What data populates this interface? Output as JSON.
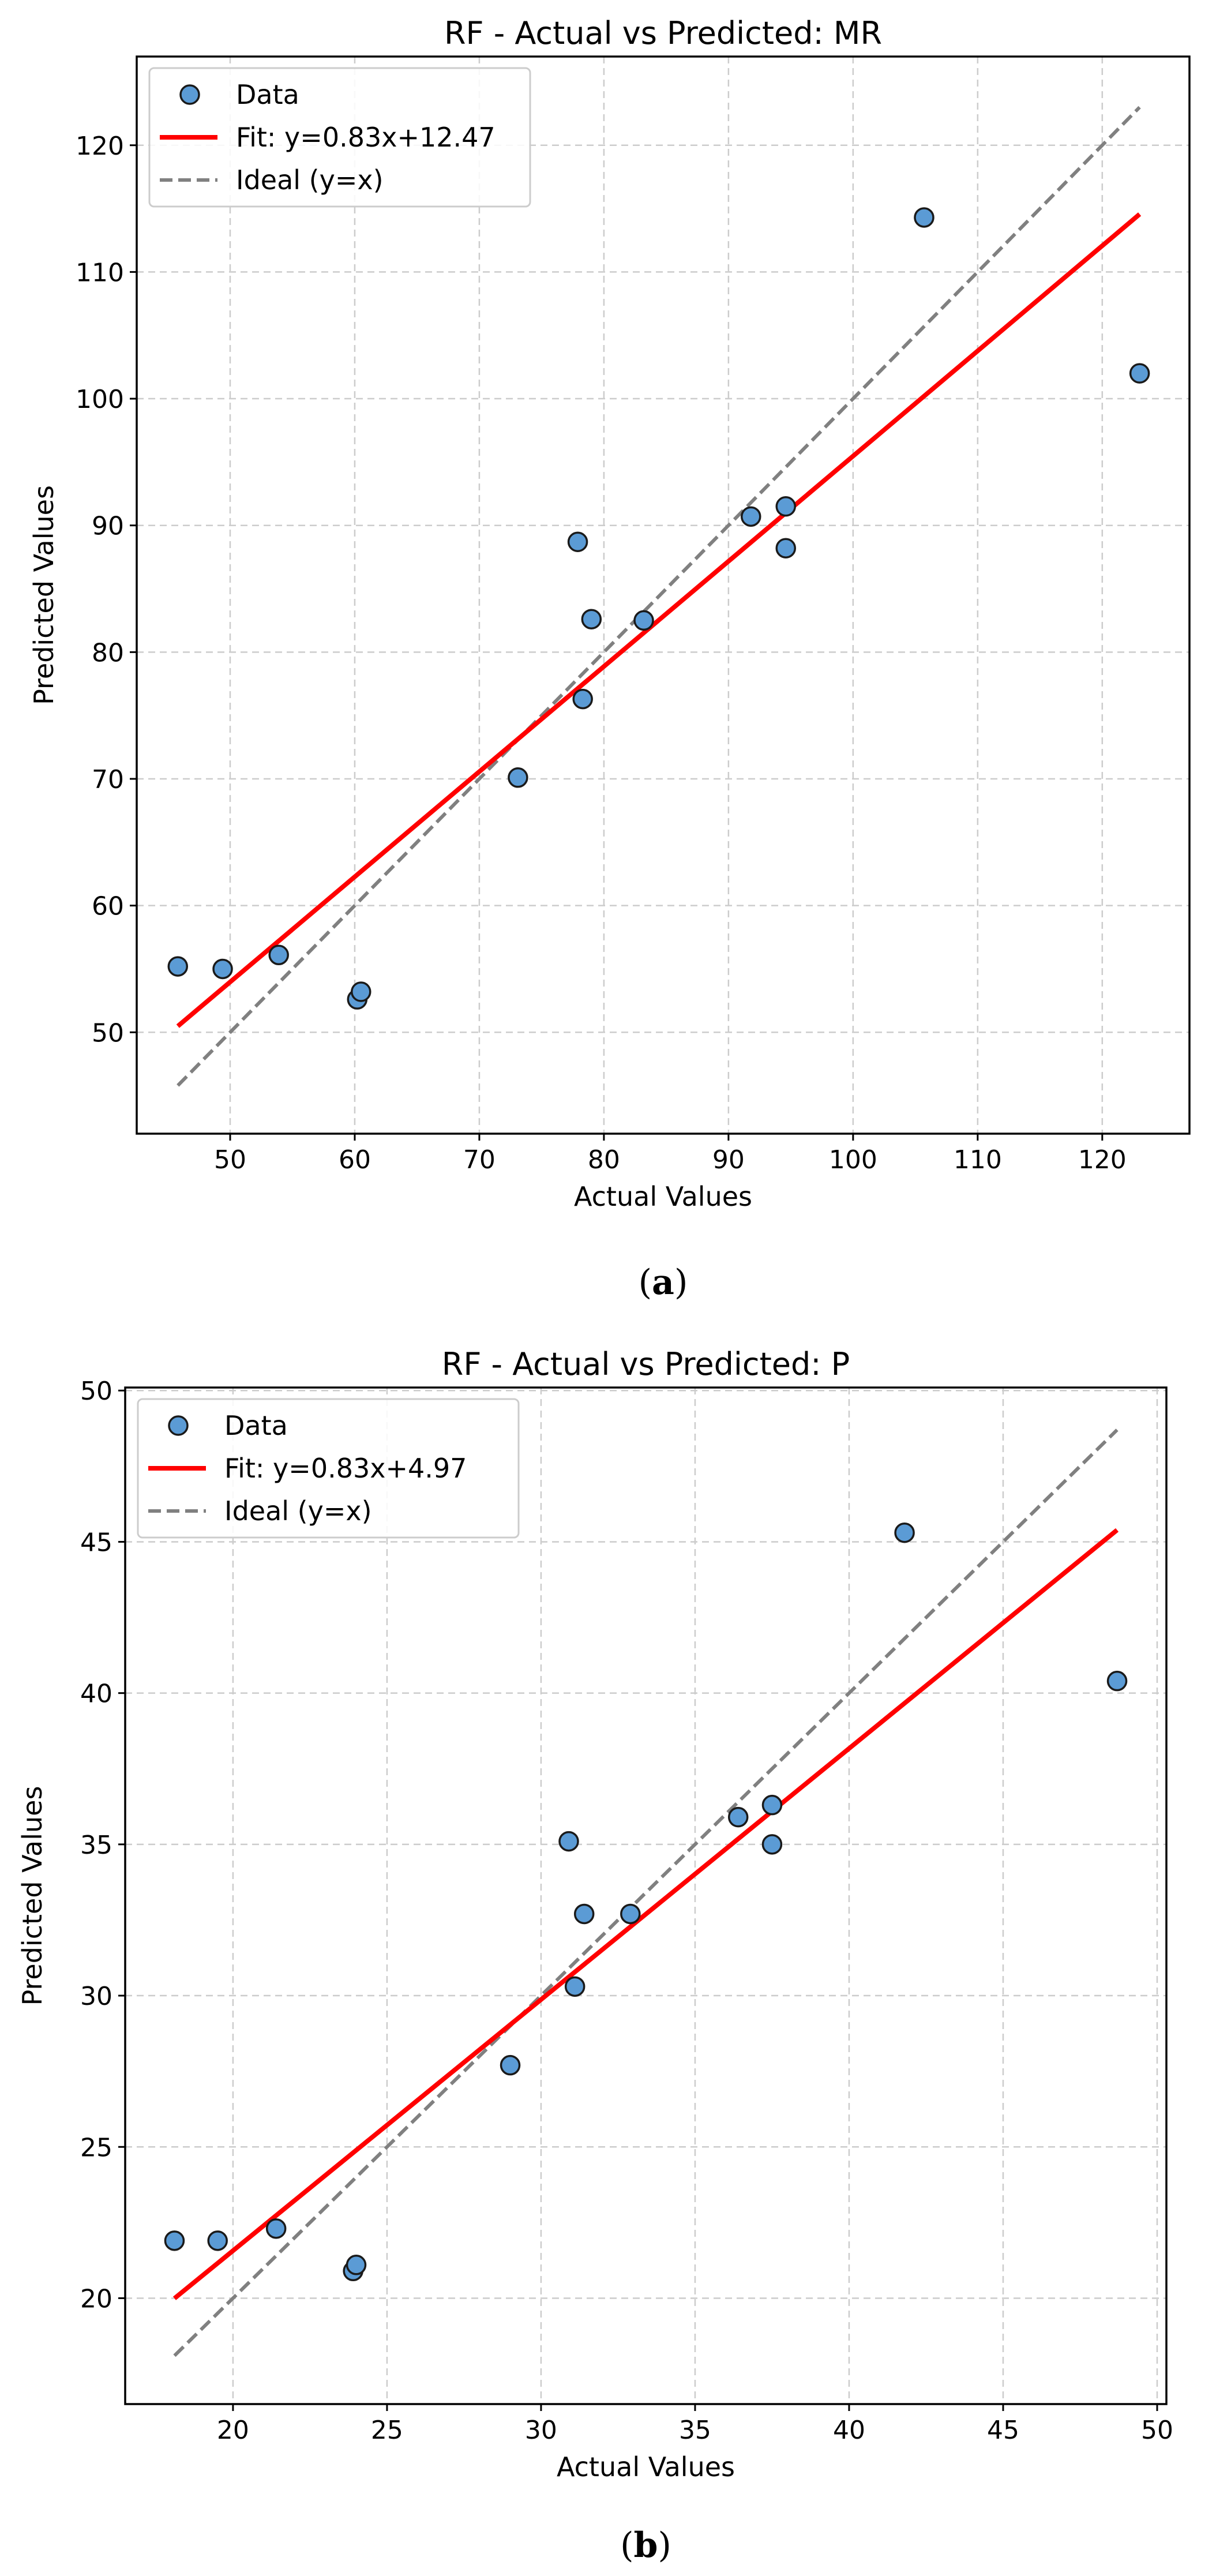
{
  "chart_data": [
    {
      "type": "scatter",
      "title": "RF - Actual vs Predicted: MR",
      "xlabel": "Actual Values",
      "ylabel": "Predicted Values",
      "caption_letter": "a",
      "xlim": [
        42.5,
        127
      ],
      "ylim": [
        42,
        127
      ],
      "xticks": [
        50,
        60,
        70,
        80,
        90,
        100,
        110,
        120
      ],
      "yticks": [
        50,
        60,
        70,
        80,
        90,
        100,
        110,
        120
      ],
      "grid": true,
      "legend_position": "top-left",
      "legend": [
        "Data",
        "Fit: y=0.83x+12.47",
        "Ideal (y=x)"
      ],
      "colors": {
        "points": "#5b9bd5",
        "fit": "#ff0000",
        "ideal": "#808080"
      },
      "fit": {
        "slope": 0.83,
        "intercept": 12.47,
        "x_range": [
          45.8,
          123.0
        ]
      },
      "ideal": {
        "x_range": [
          45.8,
          123.0
        ]
      },
      "points": [
        {
          "x": 45.8,
          "y": 55.2
        },
        {
          "x": 49.4,
          "y": 55.0
        },
        {
          "x": 53.9,
          "y": 56.1
        },
        {
          "x": 60.2,
          "y": 52.6
        },
        {
          "x": 60.5,
          "y": 53.2
        },
        {
          "x": 73.1,
          "y": 70.1
        },
        {
          "x": 77.9,
          "y": 88.7
        },
        {
          "x": 78.3,
          "y": 76.3
        },
        {
          "x": 79.0,
          "y": 82.6
        },
        {
          "x": 83.2,
          "y": 82.5
        },
        {
          "x": 91.8,
          "y": 90.7
        },
        {
          "x": 94.6,
          "y": 91.5
        },
        {
          "x": 94.6,
          "y": 88.2
        },
        {
          "x": 105.7,
          "y": 114.3
        },
        {
          "x": 123.0,
          "y": 102.0
        }
      ]
    },
    {
      "type": "scatter",
      "title": "RF - Actual vs Predicted: P",
      "xlabel": "Actual Values",
      "ylabel": "Predicted Values",
      "caption_letter": "b",
      "xlim": [
        16.5,
        50.3
      ],
      "ylim": [
        16.5,
        50.1
      ],
      "xticks": [
        20,
        25,
        30,
        35,
        40,
        45,
        50
      ],
      "yticks": [
        20,
        25,
        30,
        35,
        40,
        45,
        50
      ],
      "grid": true,
      "legend_position": "top-left",
      "legend": [
        "Data",
        "Fit: y=0.83x+4.97",
        "Ideal (y=x)"
      ],
      "colors": {
        "points": "#5b9bd5",
        "fit": "#ff0000",
        "ideal": "#808080"
      },
      "fit": {
        "slope": 0.83,
        "intercept": 4.97,
        "x_range": [
          18.1,
          48.7
        ]
      },
      "ideal": {
        "x_range": [
          18.1,
          48.7
        ]
      },
      "points": [
        {
          "x": 18.1,
          "y": 21.9
        },
        {
          "x": 19.5,
          "y": 21.9
        },
        {
          "x": 21.4,
          "y": 22.3
        },
        {
          "x": 23.9,
          "y": 20.9
        },
        {
          "x": 24.0,
          "y": 21.1
        },
        {
          "x": 29.0,
          "y": 27.7
        },
        {
          "x": 30.9,
          "y": 35.1
        },
        {
          "x": 31.1,
          "y": 30.3
        },
        {
          "x": 31.4,
          "y": 32.7
        },
        {
          "x": 32.9,
          "y": 32.7
        },
        {
          "x": 36.4,
          "y": 35.9
        },
        {
          "x": 37.5,
          "y": 36.3
        },
        {
          "x": 37.5,
          "y": 35.0
        },
        {
          "x": 41.8,
          "y": 45.3
        },
        {
          "x": 48.7,
          "y": 40.4
        }
      ]
    }
  ]
}
